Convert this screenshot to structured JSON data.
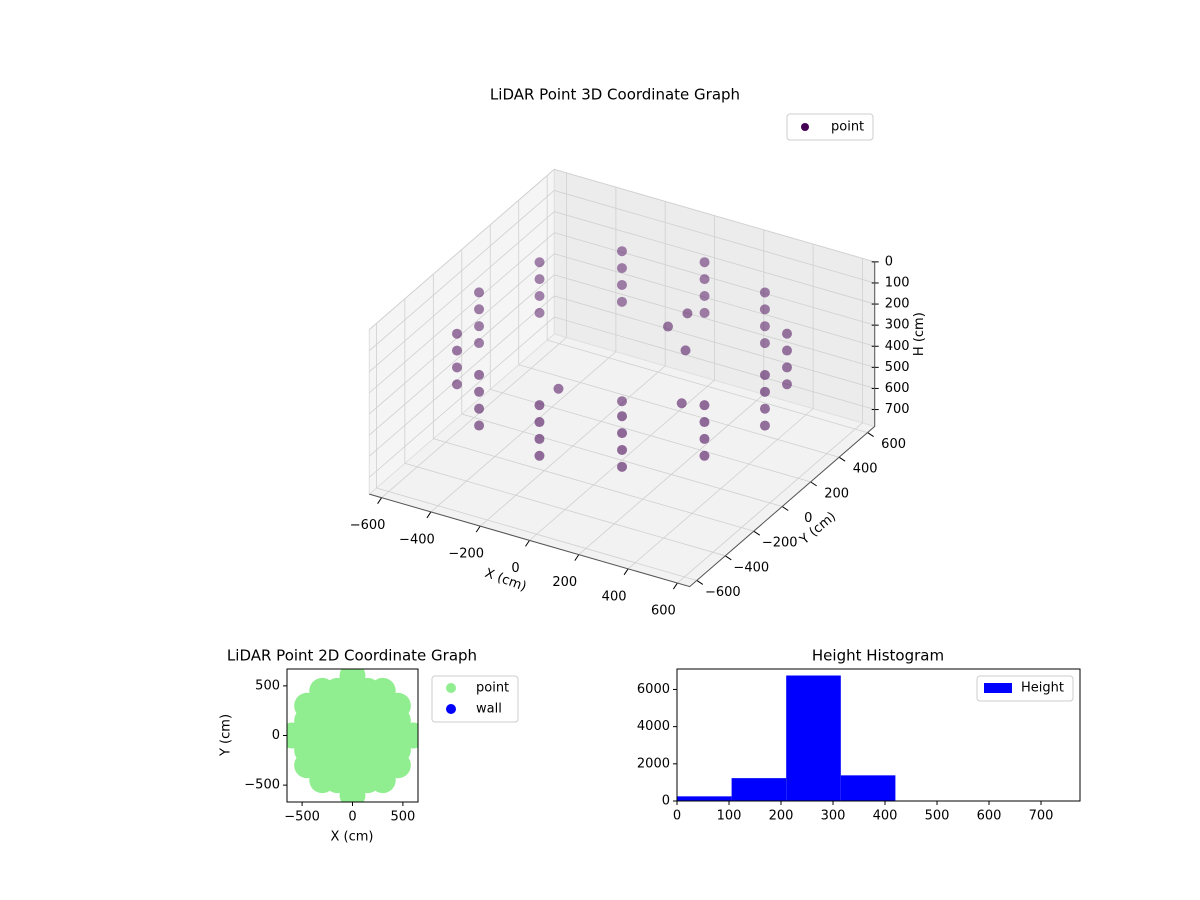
{
  "chart_data": [
    {
      "type": "scatter3d",
      "title": "LiDAR Point 3D Coordinate Graph",
      "xlabel": "X (cm)",
      "ylabel": "Y (cm)",
      "zlabel": "H (cm)",
      "xlim": [
        -650,
        650
      ],
      "ylim": [
        -650,
        650
      ],
      "zlim": [
        0,
        780
      ],
      "zinverted": true,
      "grid": true,
      "legend": "upper right",
      "xticks": [
        {
          "value": -600,
          "label": "−600"
        },
        {
          "value": -400,
          "label": "−400"
        },
        {
          "value": -200,
          "label": "−200"
        },
        0,
        200,
        400,
        600
      ],
      "yticks": [
        {
          "value": -600,
          "label": "−600"
        },
        {
          "value": -400,
          "label": "−400"
        },
        {
          "value": -200,
          "label": "−200"
        },
        0,
        200,
        400,
        600
      ],
      "zticks": [
        0,
        100,
        200,
        300,
        400,
        500,
        600,
        700
      ],
      "series": [
        {
          "name": "point",
          "color": "#440154",
          "x": [
            580,
            580,
            580,
            580,
            502,
            502,
            502,
            502,
            290,
            290,
            290,
            290,
            0,
            0,
            0,
            0,
            -290,
            -290,
            -290,
            -290,
            -502,
            -502,
            -502,
            -502,
            -580,
            -580,
            -580,
            -580,
            -502,
            -502,
            -502,
            -502,
            -290,
            -290,
            -290,
            -290,
            0,
            0,
            0,
            0,
            290,
            290,
            290,
            290,
            502,
            502,
            502,
            502,
            100,
            150,
            200,
            -200,
            300,
            0
          ],
          "y": [
            0,
            0,
            0,
            0,
            290,
            290,
            290,
            290,
            502,
            502,
            502,
            502,
            580,
            580,
            580,
            580,
            502,
            502,
            502,
            502,
            290,
            290,
            290,
            290,
            0,
            0,
            0,
            0,
            -290,
            -290,
            -290,
            -290,
            -502,
            -502,
            -502,
            -502,
            -580,
            -580,
            -580,
            -580,
            -502,
            -502,
            -502,
            -502,
            -290,
            -290,
            -290,
            -290,
            150,
            200,
            100,
            -100,
            -100,
            0
          ],
          "z": [
            180,
            260,
            340,
            420,
            180,
            260,
            340,
            420,
            180,
            260,
            340,
            420,
            180,
            260,
            340,
            420,
            180,
            260,
            340,
            420,
            180,
            260,
            340,
            420,
            180,
            260,
            340,
            420,
            180,
            260,
            340,
            420,
            180,
            260,
            340,
            420,
            180,
            260,
            340,
            420,
            180,
            260,
            340,
            420,
            180,
            260,
            340,
            420,
            200,
            150,
            250,
            450,
            350,
            500
          ]
        }
      ]
    },
    {
      "type": "scatter",
      "title": "LiDAR Point 2D Coordinate Graph",
      "xlabel": "X (cm)",
      "ylabel": "Y (cm)",
      "xlim": [
        -650,
        650
      ],
      "ylim": [
        -670,
        670
      ],
      "legend": "outside right",
      "xticks": [
        {
          "value": -500,
          "label": "−500"
        },
        0,
        500
      ],
      "yticks": [
        {
          "value": -500,
          "label": "−500"
        },
        0,
        500
      ],
      "series": [
        {
          "name": "point",
          "color": "#90ee90",
          "x": [
            -600,
            -450,
            -450,
            -450,
            -450,
            -450,
            -300,
            -300,
            -300,
            -300,
            -300,
            -300,
            -300,
            -150,
            -150,
            -150,
            -150,
            -150,
            -150,
            -150,
            0,
            0,
            0,
            0,
            0,
            0,
            0,
            0,
            0,
            150,
            150,
            150,
            150,
            150,
            150,
            150,
            300,
            300,
            300,
            300,
            300,
            300,
            300,
            450,
            450,
            450,
            450,
            450,
            600
          ],
          "y": [
            0,
            -300,
            -150,
            0,
            150,
            300,
            -450,
            -300,
            -150,
            0,
            150,
            300,
            450,
            -450,
            -300,
            -150,
            0,
            150,
            300,
            450,
            -600,
            -450,
            -300,
            -150,
            0,
            150,
            300,
            450,
            600,
            -450,
            -300,
            -150,
            0,
            150,
            300,
            450,
            -450,
            -300,
            -150,
            0,
            150,
            300,
            450,
            -300,
            -150,
            0,
            150,
            300,
            0
          ]
        },
        {
          "name": "wall",
          "color": "#0000ff",
          "x": [],
          "y": []
        }
      ]
    },
    {
      "type": "histogram",
      "title": "Height Histogram",
      "legend": "upper right",
      "xlim": [
        0,
        775
      ],
      "ylim": [
        0,
        7100
      ],
      "xticks": [
        0,
        100,
        200,
        300,
        400,
        500,
        600,
        700
      ],
      "yticks": [
        0,
        2000,
        4000,
        6000
      ],
      "series": [
        {
          "name": "Height",
          "color": "#0000ff",
          "bins": [
            0,
            105,
            210,
            315,
            420,
            525,
            630,
            735
          ],
          "values": [
            250,
            1230,
            6750,
            1380,
            0,
            0,
            0
          ]
        }
      ]
    }
  ]
}
